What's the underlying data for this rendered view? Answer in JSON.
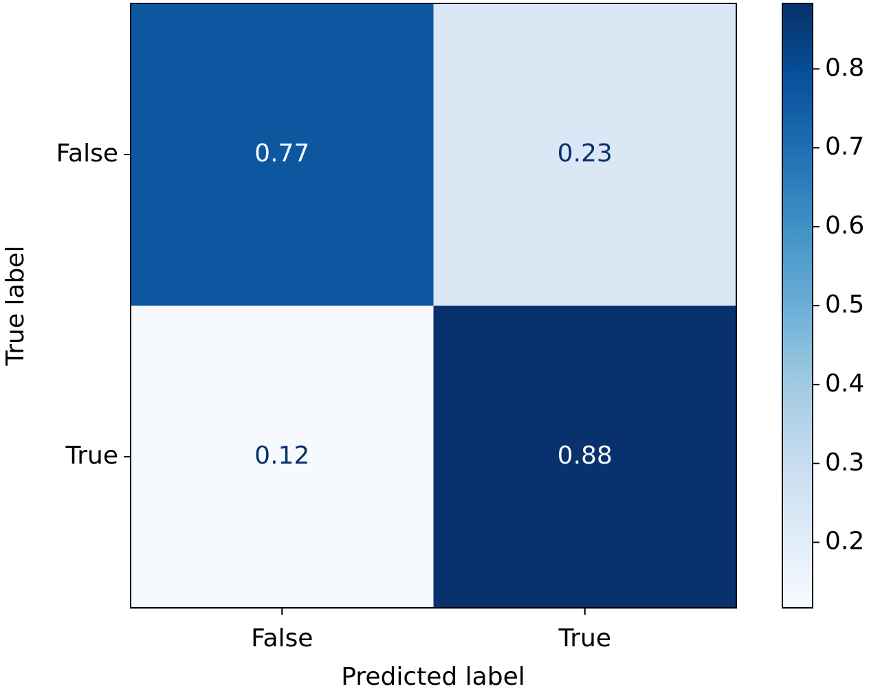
{
  "chart_data": {
    "type": "heatmap",
    "x_label": "Predicted label",
    "y_label": "True label",
    "x_categories": [
      "False",
      "True"
    ],
    "y_categories": [
      "False",
      "True"
    ],
    "values": [
      [
        0.77,
        0.23
      ],
      [
        0.12,
        0.88
      ]
    ],
    "colormap": [
      "#f7fbff",
      "#deebf7",
      "#c6dbef",
      "#9ecae1",
      "#6baed6",
      "#4292c6",
      "#2171b5",
      "#08519c",
      "#08306b"
    ],
    "clim": [
      0.117,
      0.883
    ],
    "cticks": [
      0.2,
      0.3,
      0.4,
      0.5,
      0.6,
      0.7,
      0.8
    ]
  }
}
